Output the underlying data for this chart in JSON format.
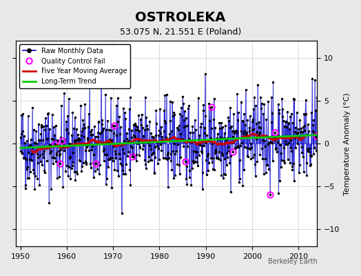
{
  "title": "OSTROLEKA",
  "subtitle": "53.075 N, 21.551 E (Poland)",
  "ylabel": "Temperature Anomaly (°C)",
  "xlabel_bottom": "Berkeley Earth",
  "year_start": 1950,
  "year_end": 2013,
  "ylim": [
    -12,
    12
  ],
  "yticks": [
    -10,
    -5,
    0,
    5,
    10
  ],
  "xticks": [
    1950,
    1960,
    1970,
    1980,
    1990,
    2000,
    2010
  ],
  "background_color": "#e8e8e8",
  "plot_bg_color": "#ffffff",
  "line_color": "#0000cc",
  "ma_color": "#cc0000",
  "trend_color": "#00cc00",
  "qc_color": "#ff00ff",
  "marker_color": "#000000",
  "seed": 42
}
